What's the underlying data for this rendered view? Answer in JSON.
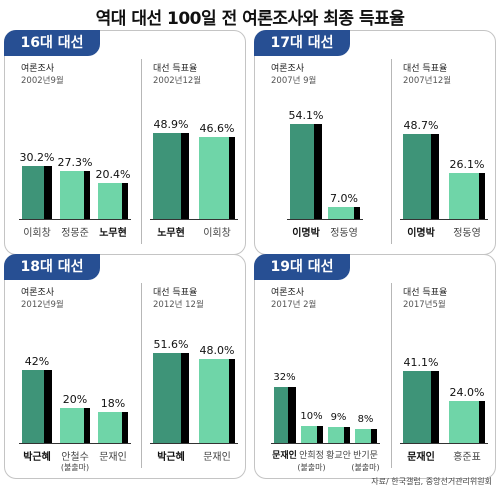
{
  "title": "역대 대선 100일 전 여론조사와 최종 득표율",
  "source": "자료/ 한국갤럽, 중앙선거관리위원회",
  "colors": {
    "panel_title_bg": "#274f93",
    "winner_bar": "#3e9478",
    "other_bar": "#6fd5a8",
    "bar_shadow": "#000000"
  },
  "chart_data": [
    {
      "type": "bar",
      "title": "16대 대선",
      "groups": [
        {
          "header": "여론조사",
          "date": "2002년9월",
          "ylim": [
            0,
            60
          ],
          "bars": [
            {
              "name": "이회창",
              "value": 30.2,
              "label": "30.2%",
              "winner": true
            },
            {
              "name": "정몽준",
              "value": 27.3,
              "label": "27.3%",
              "winner": false
            },
            {
              "name": "노무현",
              "value": 20.4,
              "label": "20.4%",
              "winner": false,
              "bold": true
            }
          ]
        },
        {
          "header": "대선 득표율",
          "date": "2002년12월",
          "ylim": [
            0,
            60
          ],
          "bars": [
            {
              "name": "노무현",
              "value": 48.9,
              "label": "48.9%",
              "winner": true,
              "bold": true
            },
            {
              "name": "이회창",
              "value": 46.6,
              "label": "46.6%",
              "winner": false
            }
          ]
        }
      ]
    },
    {
      "type": "bar",
      "title": "17대 대선",
      "groups": [
        {
          "header": "여론조사",
          "date": "2007년 9월",
          "ylim": [
            0,
            60
          ],
          "bars": [
            {
              "name": "이명박",
              "value": 54.1,
              "label": "54.1%",
              "winner": true,
              "bold": true
            },
            {
              "name": "정동영",
              "value": 7.0,
              "label": "7.0%",
              "winner": false
            }
          ]
        },
        {
          "header": "대선 득표율",
          "date": "2007년12월",
          "ylim": [
            0,
            60
          ],
          "bars": [
            {
              "name": "이명박",
              "value": 48.7,
              "label": "48.7%",
              "winner": true,
              "bold": true
            },
            {
              "name": "정동영",
              "value": 26.1,
              "label": "26.1%",
              "winner": false
            }
          ]
        }
      ]
    },
    {
      "type": "bar",
      "title": "18대 대선",
      "groups": [
        {
          "header": "여론조사",
          "date": "2012년9월",
          "ylim": [
            0,
            60
          ],
          "bars": [
            {
              "name": "박근혜",
              "value": 42,
              "label": "42%",
              "winner": true,
              "bold": true
            },
            {
              "name": "안철수",
              "note": "(불출마)",
              "value": 20,
              "label": "20%",
              "winner": false
            },
            {
              "name": "문재인",
              "value": 18,
              "label": "18%",
              "winner": false
            }
          ]
        },
        {
          "header": "대선 득표율",
          "date": "2012년 12월",
          "ylim": [
            0,
            60
          ],
          "bars": [
            {
              "name": "박근혜",
              "value": 51.6,
              "label": "51.6%",
              "winner": true,
              "bold": true
            },
            {
              "name": "문재인",
              "value": 48.0,
              "label": "48.0%",
              "winner": false
            }
          ]
        }
      ]
    },
    {
      "type": "bar",
      "title": "19대 대선",
      "groups": [
        {
          "header": "여론조사",
          "date": "2017년 2월",
          "ylim": [
            0,
            60
          ],
          "bars": [
            {
              "name": "문재인",
              "value": 32,
              "label": "32%",
              "winner": true,
              "bold": true
            },
            {
              "name": "안희정",
              "note": "(불출마)",
              "value": 10,
              "label": "10%",
              "winner": false
            },
            {
              "name": "황교안",
              "value": 9,
              "label": "9%",
              "winner": false
            },
            {
              "name": "반기문",
              "note": "(불출마)",
              "value": 8,
              "label": "8%",
              "winner": false
            }
          ]
        },
        {
          "header": "대선 득표율",
          "date": "2017년5월",
          "ylim": [
            0,
            60
          ],
          "bars": [
            {
              "name": "문재인",
              "value": 41.1,
              "label": "41.1%",
              "winner": true,
              "bold": true
            },
            {
              "name": "홍준표",
              "value": 24.0,
              "label": "24.0%",
              "winner": false
            }
          ]
        }
      ]
    }
  ]
}
